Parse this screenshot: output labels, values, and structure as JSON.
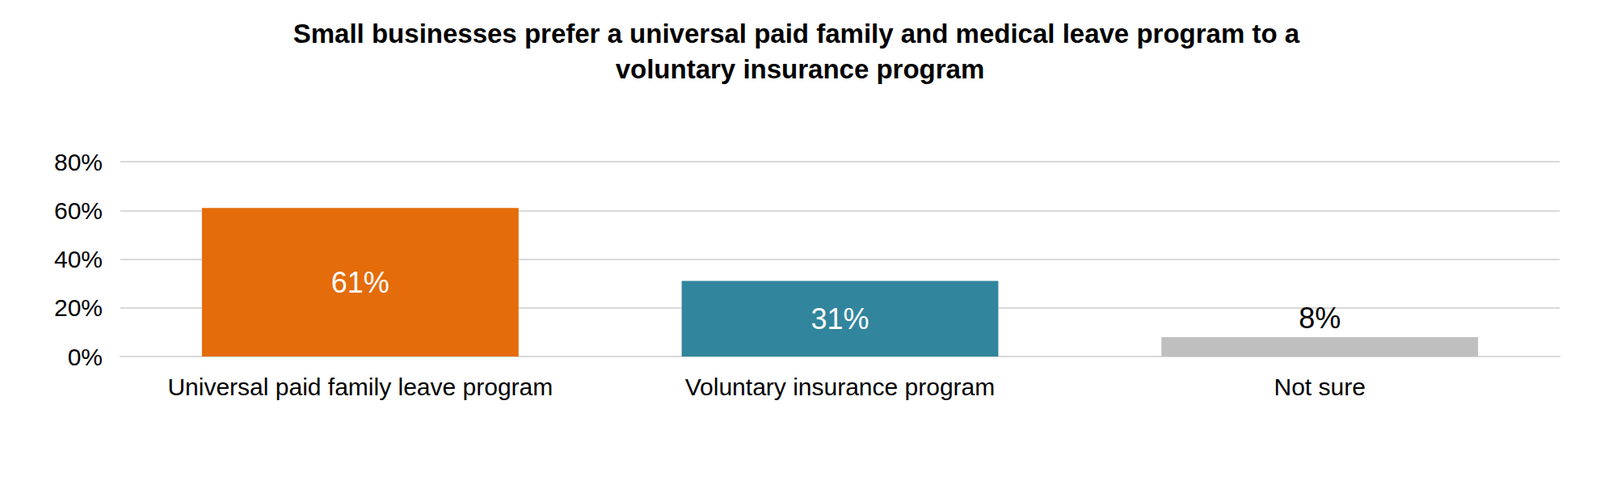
{
  "chart_data": {
    "type": "bar",
    "title": "Small businesses prefer a universal paid family and medical leave program to a voluntary insurance program",
    "categories": [
      "Universal paid family leave program",
      "Voluntary insurance program",
      "Not sure"
    ],
    "values": [
      61,
      31,
      8
    ],
    "value_labels": [
      "61%",
      "31%",
      "8%"
    ],
    "colors": [
      "#e46c0a",
      "#31859c",
      "#bfbfbf"
    ],
    "ylim": [
      0,
      80
    ],
    "yticks": [
      {
        "value": 0,
        "label": "0%"
      },
      {
        "value": 20,
        "label": "20%"
      },
      {
        "value": 40,
        "label": "40%"
      },
      {
        "value": 60,
        "label": "60%"
      },
      {
        "value": 80,
        "label": "80%"
      }
    ],
    "grid": true,
    "data_labels": true
  }
}
